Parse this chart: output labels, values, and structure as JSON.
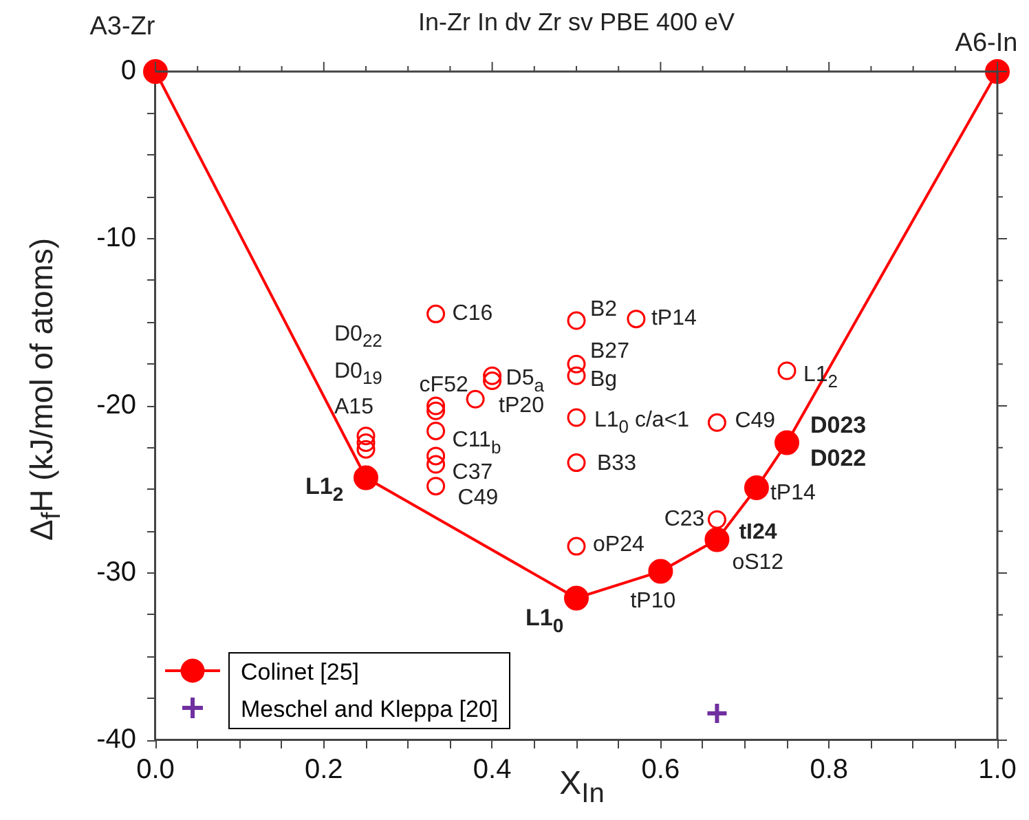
{
  "chart_data": {
    "type": "line",
    "title": "In-Zr In dv  Zr sv PBE 400 eV",
    "xlabel": "X$_{In}$",
    "ylabel": "Δ$_{f}$H (kJ/mol of atoms)",
    "xlim": [
      0,
      1
    ],
    "ylim": [
      -40,
      0
    ],
    "xticks": [
      {
        "value": 0,
        "label": "0.0"
      },
      {
        "value": 0.05,
        "label": null
      },
      {
        "value": 0.1,
        "label": null
      },
      {
        "value": 0.15,
        "label": null
      },
      {
        "value": 0.2,
        "label": "0.2"
      },
      {
        "value": 0.25,
        "label": null
      },
      {
        "value": 0.3,
        "label": null
      },
      {
        "value": 0.35,
        "label": null
      },
      {
        "value": 0.4,
        "label": "0.4"
      },
      {
        "value": 0.45,
        "label": null
      },
      {
        "value": 0.5,
        "label": null
      },
      {
        "value": 0.55,
        "label": null
      },
      {
        "value": 0.6,
        "label": "0.6"
      },
      {
        "value": 0.65,
        "label": null
      },
      {
        "value": 0.7,
        "label": null
      },
      {
        "value": 0.75,
        "label": null
      },
      {
        "value": 0.8,
        "label": "0.8"
      },
      {
        "value": 0.85,
        "label": null
      },
      {
        "value": 0.9,
        "label": null
      },
      {
        "value": 0.95,
        "label": null
      },
      {
        "value": 1,
        "label": "1.0"
      }
    ],
    "yticks": [
      -40,
      {
        "value": -37.5,
        "label": null
      },
      {
        "value": -35,
        "label": null
      },
      {
        "value": -32.5,
        "label": null
      },
      -30,
      {
        "value": -27.5,
        "label": null
      },
      {
        "value": -25,
        "label": null
      },
      {
        "value": -22.5,
        "label": null
      },
      -20,
      {
        "value": -17.5,
        "label": null
      },
      {
        "value": -15,
        "label": null
      },
      {
        "value": -12.5,
        "label": null
      },
      -10,
      {
        "value": -7.5,
        "label": null
      },
      {
        "value": -5,
        "label": null
      },
      {
        "value": -2.5,
        "label": null
      },
      0
    ],
    "legend": "bottom left",
    "series": [
      {
        "name": "Colinet [25]",
        "color": "#ff0000",
        "marker": "circle",
        "x": [
          0,
          0.25,
          0.5,
          0.6,
          0.667,
          0.714,
          0.75,
          1
        ],
        "values": [
          0,
          -24.3,
          -31.5,
          -29.9,
          -28.0,
          -24.9,
          -22.2,
          0
        ]
      },
      {
        "type": "scatter",
        "color": "#ff0000",
        "marker": "circle",
        "x": [
          0.25,
          0.25,
          0.25,
          0.333,
          0.333,
          0.333,
          0.333,
          0.333,
          0.333,
          0.333,
          0.38,
          0.4,
          0.4,
          0.5,
          0.5,
          0.5,
          0.5,
          0.5,
          0.5,
          0.571,
          0.667,
          0.667,
          0.75
        ],
        "values": [
          -21.8,
          -22.2,
          -22.6,
          -14.5,
          -20.0,
          -20.3,
          -21.5,
          -23.0,
          -23.5,
          -24.8,
          -19.6,
          -18.2,
          -18.5,
          -14.9,
          -17.5,
          -18.2,
          -20.7,
          -23.4,
          -28.4,
          -14.8,
          -21.0,
          -26.8,
          -17.9
        ]
      },
      {
        "name": "Meschel and Kleppa [20]",
        "type": "scatter",
        "color": "#7030a0",
        "marker": "cross",
        "x": [
          0.667
        ],
        "values": [
          -38.4
        ]
      }
    ],
    "annotations": [
      {
        "text": "A3-Zr",
        "x": 0,
        "y": 0
      },
      {
        "text": "A6-In",
        "x": 1,
        "y": 0
      },
      "D0$_{22}$",
      "D0$_{19}$",
      "A15",
      {
        "text": "L1$_{2}$",
        "x": 0.25,
        "y": -24.3
      },
      {
        "text": "C16",
        "x": 0.333,
        "y": -14.5
      },
      {
        "text": "cF52",
        "x": 0.333,
        "y": -20.0
      },
      {
        "text": "C11$_{b}$",
        "x": 0.333,
        "y": -21.5
      },
      {
        "text": "C37",
        "x": 0.333,
        "y": -23.5
      },
      {
        "text": "C49",
        "x": 0.333,
        "y": -24.8
      },
      {
        "text": "D5$_{a}$",
        "x": 0.4,
        "y": -18.2
      },
      {
        "text": "tP20",
        "x": 0.38,
        "y": -19.6
      },
      {
        "text": "B2",
        "x": 0.5,
        "y": -14.9
      },
      {
        "text": "tP14",
        "x": 0.571,
        "y": -14.8
      },
      {
        "text": "B27",
        "x": 0.5,
        "y": -17.5
      },
      {
        "text": "Bg",
        "x": 0.5,
        "y": -18.2
      },
      {
        "text": "L1$_{2}$",
        "x": 0.75,
        "y": -17.9
      },
      {
        "text": "L1$_{0}$ c/a<1",
        "x": 0.5,
        "y": -20.7
      },
      {
        "text": "C49",
        "x": 0.667,
        "y": -21.0
      },
      {
        "text": "B33",
        "x": 0.5,
        "y": -23.4
      },
      {
        "text": "D023",
        "x": 0.75,
        "y": -22.2
      },
      {
        "text": "D022",
        "x": 0.75,
        "y": -22.2
      },
      {
        "text": "tP14",
        "x": 0.714,
        "y": -24.9
      },
      {
        "text": "C23",
        "x": 0.667,
        "y": -26.8
      },
      {
        "text": "tI24",
        "x": 0.667,
        "y": -28.0
      },
      {
        "text": "oS12",
        "x": 0.667,
        "y": -28.0
      },
      {
        "text": "oP24",
        "x": 0.5,
        "y": -28.4
      },
      {
        "text": "L1$_{0}$",
        "x": 0.5,
        "y": -31.5
      },
      {
        "text": "tP10",
        "x": 0.6,
        "y": -29.9
      }
    ]
  }
}
